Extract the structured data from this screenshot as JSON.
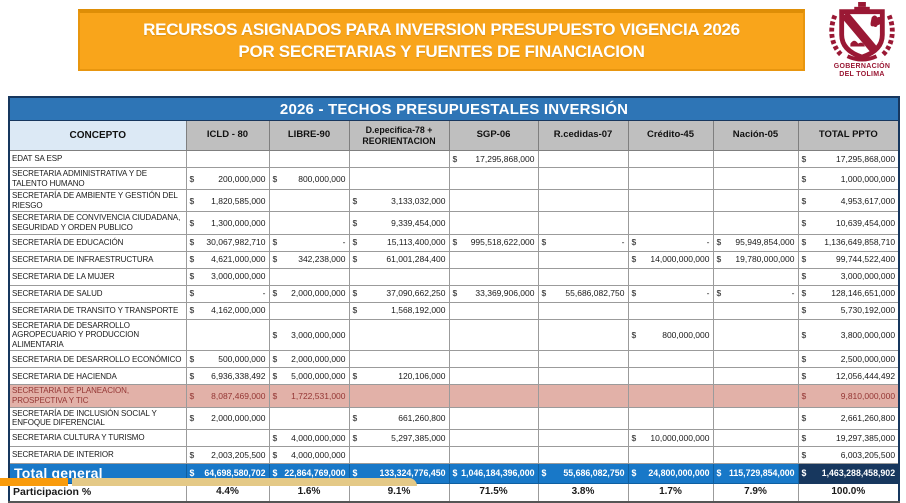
{
  "banner": {
    "line1": "RECURSOS ASIGNADOS PARA INVERSION PRESUPUESTO VIGENCIA 2026",
    "line2": "POR SECRETARIAS Y FUENTES DE FINANCIACION"
  },
  "logo": {
    "caption_line1": "GOBERNACIÓN",
    "caption_line2": "DEL TOLIMA"
  },
  "table": {
    "title": "2026 - TECHOS PRESUPUESTALES INVERSIÓN",
    "columns": [
      "CONCEPTO",
      "ICLD - 80",
      "LIBRE-90",
      "D.epecifica-78 + REORIENTACION",
      "SGP-06",
      "R.cedidas-07",
      "Crédito-45",
      "Nación-05",
      "TOTAL  PPTO"
    ],
    "rows": [
      {
        "concepto": "EDAT SA ESP",
        "values": [
          "",
          "",
          "",
          "17,295,868,000",
          "",
          "",
          "",
          "17,295,868,000"
        ],
        "highlight": false
      },
      {
        "concepto": "SECRETARIA ADMINISTRATIVA Y DE TALENTO HUMANO",
        "values": [
          "200,000,000",
          "800,000,000",
          "",
          "",
          "",
          "",
          "",
          "1,000,000,000"
        ],
        "highlight": false
      },
      {
        "concepto": "SECRETARÍA DE AMBIENTE Y GESTIÓN DEL RIESGO",
        "values": [
          "1,820,585,000",
          "",
          "3,133,032,000",
          "",
          "",
          "",
          "",
          "4,953,617,000"
        ],
        "highlight": false
      },
      {
        "concepto": "SECRETARIA DE CONVIVENCIA CIUDADANA, SEGURIDAD Y ORDEN PUBLICO",
        "values": [
          "1,300,000,000",
          "",
          "9,339,454,000",
          "",
          "",
          "",
          "",
          "10,639,454,000"
        ],
        "highlight": false
      },
      {
        "concepto": "SECRETARÍA DE EDUCACIÓN",
        "values": [
          "30,067,982,710",
          "-",
          "15,113,400,000",
          "995,518,622,000",
          "-",
          "-",
          "95,949,854,000",
          "1,136,649,858,710"
        ],
        "highlight": false
      },
      {
        "concepto": "SECRETARIA DE INFRAESTRUCTURA",
        "values": [
          "4,621,000,000",
          "342,238,000",
          "61,001,284,400",
          "",
          "",
          "14,000,000,000",
          "19,780,000,000",
          "99,744,522,400"
        ],
        "highlight": false
      },
      {
        "concepto": "SECRETARIA DE LA MUJER",
        "values": [
          "3,000,000,000",
          "",
          "",
          "",
          "",
          "",
          "",
          "3,000,000,000"
        ],
        "highlight": false
      },
      {
        "concepto": "SECRETARIA DE SALUD",
        "values": [
          "-",
          "2,000,000,000",
          "37,090,662,250",
          "33,369,906,000",
          "55,686,082,750",
          "-",
          "-",
          "128,146,651,000"
        ],
        "highlight": false
      },
      {
        "concepto": "SECRETARIA DE TRANSITO Y TRANSPORTE",
        "values": [
          "4,162,000,000",
          "",
          "1,568,192,000",
          "",
          "",
          "",
          "",
          "5,730,192,000"
        ],
        "highlight": false
      },
      {
        "concepto": "SECRETARIA DE DESARROLLO AGROPECUARIO Y PRODUCCION ALIMENTARIA",
        "values": [
          "",
          "3,000,000,000",
          "",
          "",
          "",
          "800,000,000",
          "",
          "3,800,000,000"
        ],
        "highlight": false
      },
      {
        "concepto": "SECRETARIA DE DESARROLLO ECONÓMICO",
        "values": [
          "500,000,000",
          "2,000,000,000",
          "",
          "",
          "",
          "",
          "",
          "2,500,000,000"
        ],
        "highlight": false
      },
      {
        "concepto": "SECRETARIA DE HACIENDA",
        "values": [
          "6,936,338,492",
          "5,000,000,000",
          "120,106,000",
          "",
          "",
          "",
          "",
          "12,056,444,492"
        ],
        "highlight": false
      },
      {
        "concepto": "SECRETARIA DE PLANEACION, PROSPECTIVA Y TIC",
        "values": [
          "8,087,469,000",
          "1,722,531,000",
          "",
          "",
          "",
          "",
          "",
          "9,810,000,000"
        ],
        "highlight": true
      },
      {
        "concepto": "SECRETARÍA DE INCLUSIÓN SOCIAL Y ENFOQUE DIFERENCIAL",
        "values": [
          "2,000,000,000",
          "",
          "661,260,800",
          "",
          "",
          "",
          "",
          "2,661,260,800"
        ],
        "highlight": false
      },
      {
        "concepto": "SECRETARIA CULTURA Y TURISMO",
        "values": [
          "",
          "4,000,000,000",
          "5,297,385,000",
          "",
          "",
          "10,000,000,000",
          "",
          "19,297,385,000"
        ],
        "highlight": false
      },
      {
        "concepto": "SECRETARIA DE INTERIOR",
        "values": [
          "2,003,205,500",
          "4,000,000,000",
          "",
          "",
          "",
          "",
          "",
          "6,003,205,500"
        ],
        "highlight": false
      }
    ],
    "total_row": {
      "label": "Total general",
      "values": [
        "64,698,580,702",
        "22,864,769,000",
        "133,324,776,450",
        "1,046,184,396,000",
        "55,686,082,750",
        "24,800,000,000",
        "115,729,854,000",
        "1,463,288,458,902"
      ]
    },
    "participation_row": {
      "label": "Participacion %",
      "values": [
        "4.4%",
        "1.6%",
        "9.1%",
        "71.5%",
        "3.8%",
        "1.7%",
        "7.9%",
        "100.0%"
      ]
    },
    "currency_symbol": "$"
  },
  "colors": {
    "banner_bg": "#F9A51B",
    "banner_border": "#E8960F",
    "title_bar_blue": "#2E75B6",
    "header_gray": "#BFBFBF",
    "concept_header_blue": "#DCE9F5",
    "highlight_pink": "#E2B1A8",
    "highlight_text": "#943634",
    "total_row_blue": "#1878C8",
    "grand_total_navy": "#17375E",
    "logo_maroon": "#9A1834",
    "deco_orange": "#F99B0C",
    "deco_beige": "#E4C987"
  }
}
